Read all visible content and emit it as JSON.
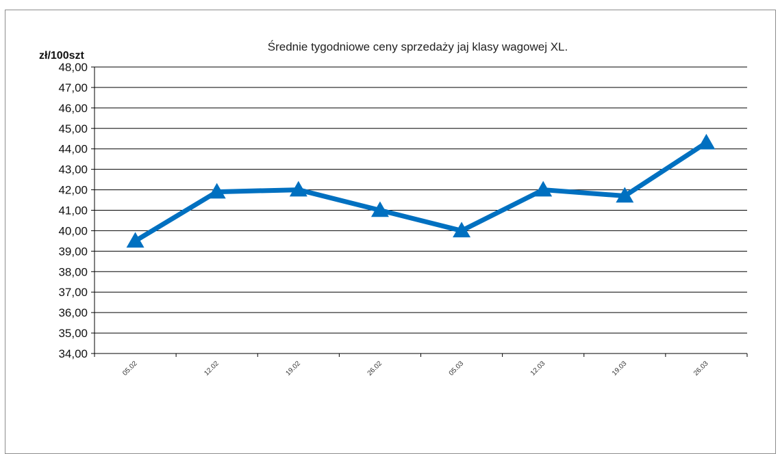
{
  "chart_data": {
    "type": "line",
    "title": "Średnie tygodniowe ceny sprzedaży jaj klasy wagowej XL.",
    "ylabel": "zł/100szt",
    "xlabel": "",
    "categories": [
      "05.02",
      "12.02",
      "19.02",
      "26.02",
      "05.03",
      "12.03",
      "19.03",
      "26.03"
    ],
    "values": [
      39.5,
      41.9,
      42.0,
      41.0,
      40.0,
      42.0,
      41.7,
      44.3
    ],
    "ylim": [
      34,
      48
    ],
    "y_ticks": [
      "34,00",
      "35,00",
      "36,00",
      "37,00",
      "38,00",
      "39,00",
      "40,00",
      "41,00",
      "42,00",
      "43,00",
      "44,00",
      "45,00",
      "46,00",
      "47,00",
      "48,00"
    ],
    "grid": true,
    "legend": "none",
    "marker": "triangle",
    "line_color": "#0070c0"
  }
}
